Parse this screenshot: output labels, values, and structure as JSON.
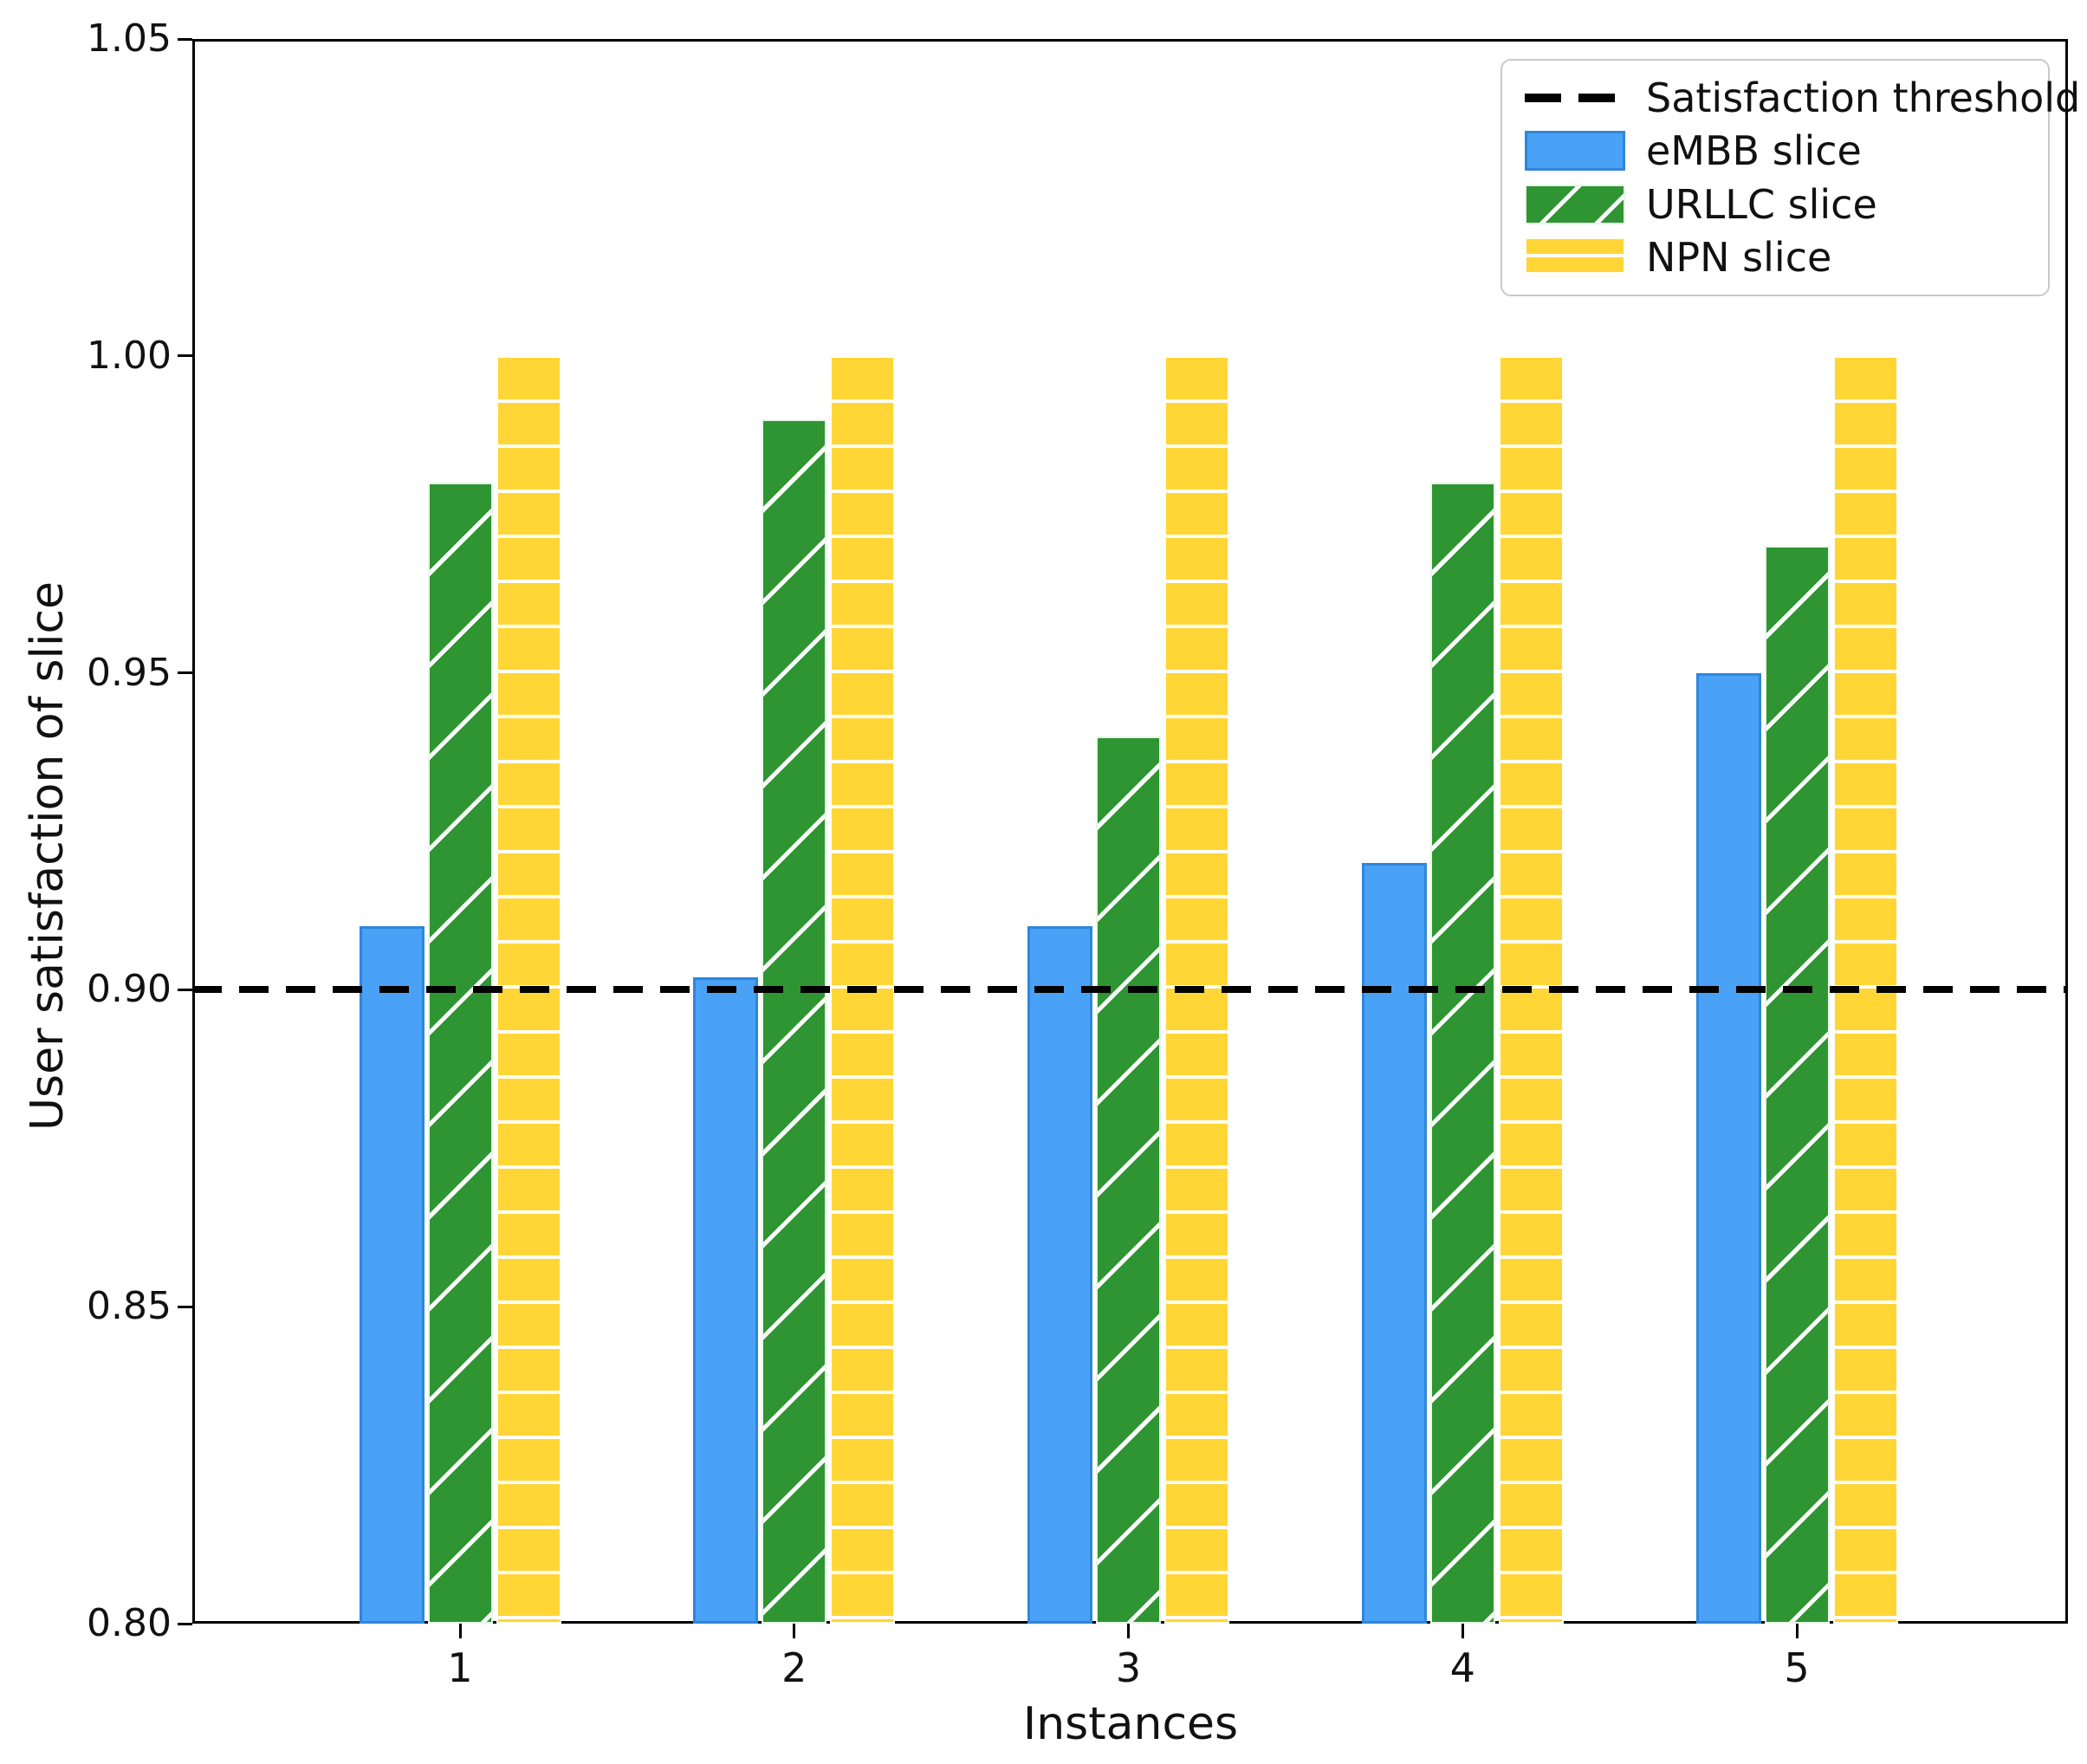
{
  "chart_data": {
    "type": "bar",
    "title": "",
    "xlabel": "Instances",
    "ylabel": "User satisfaction of slice",
    "categories": [
      "1",
      "2",
      "3",
      "4",
      "5"
    ],
    "series": [
      {
        "name": "eMBB slice",
        "color": "#4AA2F7",
        "edge_color": "#2F86DB",
        "hatch": "none",
        "values": [
          0.91,
          0.902,
          0.91,
          0.92,
          0.95
        ]
      },
      {
        "name": "URLLC slice",
        "color": "#2E9532",
        "edge_color": "#FFFFFF",
        "hatch": "diagonal",
        "values": [
          0.98,
          0.99,
          0.94,
          0.98,
          0.97
        ]
      },
      {
        "name": "NPN slice",
        "color": "#FFD636",
        "edge_color": "#FFFFFF",
        "hatch": "horizontal",
        "values": [
          1.0,
          1.0,
          1.0,
          1.0,
          1.0
        ]
      }
    ],
    "threshold": {
      "label": "Satisfaction threshold",
      "value": 0.9,
      "color": "#000000",
      "style": "dashed"
    },
    "ylim": [
      0.8,
      1.05
    ],
    "yticks": [
      0.8,
      0.85,
      0.9,
      0.95,
      1.0,
      1.05
    ],
    "ytick_labels": [
      "0.80",
      "0.85",
      "0.90",
      "0.95",
      "1.00",
      "1.05"
    ],
    "legend_position": "upper right",
    "legend_entries": [
      "Satisfaction threshold",
      "eMBB slice",
      "URLLC slice",
      "NPN slice"
    ],
    "grid": false,
    "background_color": "#FFFFFF",
    "axis_color": "#000000"
  }
}
